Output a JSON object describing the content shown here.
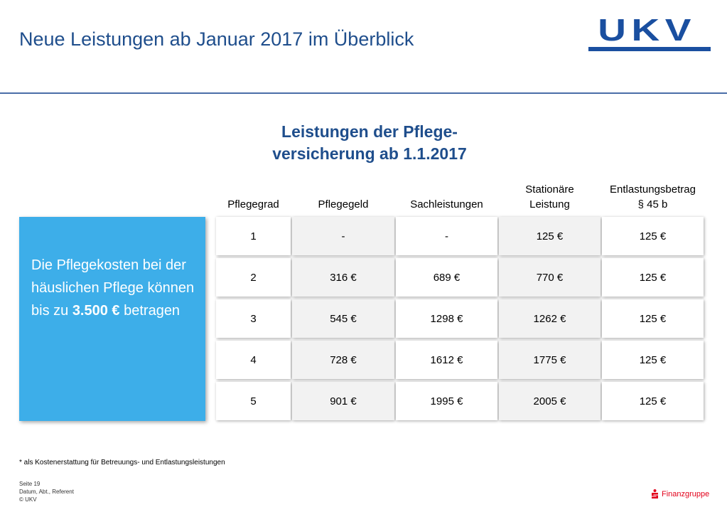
{
  "header": {
    "title": "Neue Leistungen ab Januar 2017 im Überblick",
    "logo_text": "UKV",
    "brand_color": "#1a4fa0"
  },
  "subtitle": {
    "line1": "Leistungen der Pflege-",
    "line2": "versicherung ab 1.1.2017"
  },
  "info_box": {
    "text_before": "Die Pflegekosten bei der häuslichen Pflege können bis zu ",
    "bold": "3.500 €",
    "text_after": " betragen",
    "color": "#3daee9"
  },
  "table": {
    "headers": [
      {
        "line1": "Pflegegrad",
        "line2": ""
      },
      {
        "line1": "Pflegegeld",
        "line2": ""
      },
      {
        "line1": "Sachleistungen",
        "line2": ""
      },
      {
        "line1": "Stationäre",
        "line2": "Leistung"
      },
      {
        "line1": "Entlastungsbetrag",
        "line2": "§ 45 b"
      }
    ],
    "rows": [
      [
        "1",
        "-",
        "-",
        "125 €",
        "125 €"
      ],
      [
        "2",
        "316 €",
        "689 €",
        "770 €",
        "125 €"
      ],
      [
        "3",
        "545 €",
        "1298 €",
        "1262 €",
        "125 €"
      ],
      [
        "4",
        "728 €",
        "1612 €",
        "1775 €",
        "125 €"
      ],
      [
        "5",
        "901 €",
        "1995 €",
        "2005 €",
        "125 €"
      ]
    ]
  },
  "footnote": "* als Kostenerstattung für Betreuungs- und Entlastungsleistungen",
  "footer": {
    "page": "Seite 19",
    "meta": "Datum, Abt., Referent",
    "copyright": "© UKV"
  },
  "sparkasse": {
    "label": "Finanzgruppe",
    "color": "#e2001a"
  }
}
